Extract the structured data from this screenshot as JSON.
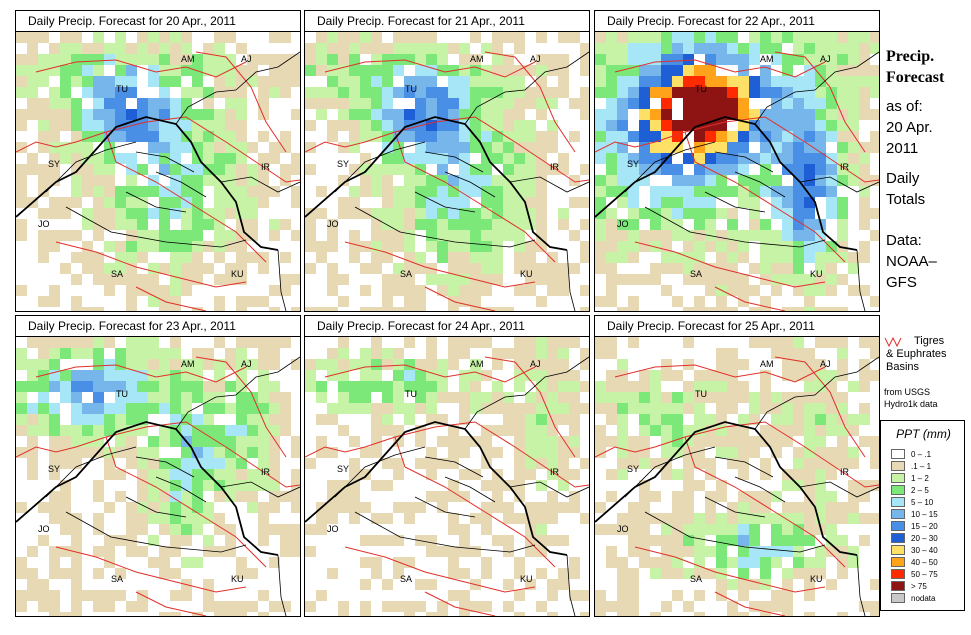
{
  "panels": [
    {
      "title": "Daily Precip. Forecast for  20 Apr., 2011",
      "profile": "mid"
    },
    {
      "title": "Daily Precip. Forecast for  21 Apr., 2011",
      "profile": "mid"
    },
    {
      "title": "Daily Precip. Forecast for  22 Apr., 2011",
      "profile": "heavy"
    },
    {
      "title": "Daily Precip. Forecast for  23 Apr., 2011",
      "profile": "mid-north"
    },
    {
      "title": "Daily Precip. Forecast for  24 Apr., 2011",
      "profile": "light"
    },
    {
      "title": "Daily Precip. Forecast for  25 Apr., 2011",
      "profile": "south"
    }
  ],
  "country_labels": [
    "AM",
    "AJ",
    "TU",
    "SY",
    "IR",
    "JO",
    "SA",
    "KU"
  ],
  "sidebar": {
    "headline_1": "Precip.",
    "headline_2": "Forecast",
    "asof_1": "as of:",
    "asof_2": "20 Apr.",
    "asof_3": "2011",
    "daily_1": "Daily",
    "daily_2": "Totals",
    "data_1": "Data:",
    "data_2": "NOAA–",
    "data_3": "GFS"
  },
  "basins_legend": {
    "line1": "Tigres",
    "line2": "& Euphrates",
    "line3": "Basins",
    "source1": "from USGS",
    "source2": "Hydro1k data",
    "color": "#e0302a"
  },
  "ppt_legend": {
    "title": "PPT (mm)",
    "classes": [
      {
        "label": "0 – .1",
        "color": "#ffffff"
      },
      {
        "label": ".1 – 1",
        "color": "#e8d9b5"
      },
      {
        "label": "1 – 2",
        "color": "#c7f3a6"
      },
      {
        "label": "2 – 5",
        "color": "#7ce87a"
      },
      {
        "label": "5 – 10",
        "color": "#a6e6f6"
      },
      {
        "label": "10 – 15",
        "color": "#76b6ea"
      },
      {
        "label": "15 – 20",
        "color": "#4a8fe6"
      },
      {
        "label": "20 – 30",
        "color": "#1f5fd6"
      },
      {
        "label": "30 – 40",
        "color": "#ffe066"
      },
      {
        "label": "40 – 50",
        "color": "#ffa31a"
      },
      {
        "label": "50 – 75",
        "color": "#ff2a00"
      },
      {
        "label": "> 75",
        "color": "#8e1414"
      },
      {
        "label": "nodata",
        "color": "#c8c8c8"
      }
    ]
  }
}
